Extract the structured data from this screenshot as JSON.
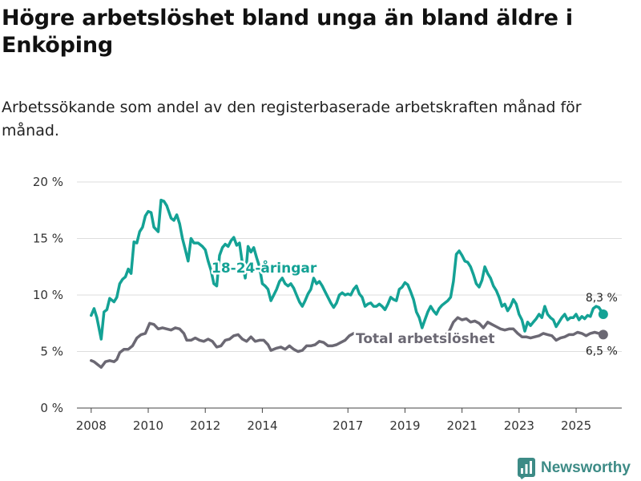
{
  "title": "Högre arbetslöshet bland unga än bland äldre i Enköping",
  "subtitle": "Arbetssökande som andel av den registerbaserade arbetskraften månad för månad.",
  "brand": {
    "name": "Newsworthy",
    "color": "#3d8b86"
  },
  "chart_data": {
    "type": "line",
    "ylim": [
      0,
      20
    ],
    "xlim": [
      2007.5,
      2026.6
    ],
    "y_ticks": [
      0,
      5,
      10,
      15,
      20
    ],
    "y_tick_labels": [
      "0 %",
      "5 %",
      "10 %",
      "15 %",
      "20 %"
    ],
    "x_ticks": [
      2008,
      2010,
      2012,
      2014,
      2017,
      2019,
      2021,
      2023,
      2025
    ],
    "x_tick_labels": [
      "2008",
      "2010",
      "2012",
      "2014",
      "2017",
      "2019",
      "2021",
      "2023",
      "2025"
    ],
    "grid": true,
    "series": [
      {
        "name": "18-24-åringar",
        "color": "#14a295",
        "end_label": "8,3 %",
        "points": [
          [
            2008.0,
            8.2
          ],
          [
            2008.1,
            8.8
          ],
          [
            2008.2,
            8.0
          ],
          [
            2008.35,
            6.1
          ],
          [
            2008.45,
            8.5
          ],
          [
            2008.55,
            8.7
          ],
          [
            2008.65,
            9.7
          ],
          [
            2008.8,
            9.4
          ],
          [
            2008.9,
            9.8
          ],
          [
            2009.0,
            11.0
          ],
          [
            2009.1,
            11.4
          ],
          [
            2009.2,
            11.6
          ],
          [
            2009.3,
            12.3
          ],
          [
            2009.4,
            11.9
          ],
          [
            2009.5,
            14.7
          ],
          [
            2009.6,
            14.6
          ],
          [
            2009.7,
            15.6
          ],
          [
            2009.8,
            16.0
          ],
          [
            2009.9,
            17.0
          ],
          [
            2010.0,
            17.4
          ],
          [
            2010.1,
            17.3
          ],
          [
            2010.2,
            16.0
          ],
          [
            2010.35,
            15.6
          ],
          [
            2010.45,
            18.4
          ],
          [
            2010.55,
            18.3
          ],
          [
            2010.65,
            17.9
          ],
          [
            2010.8,
            16.8
          ],
          [
            2010.9,
            16.6
          ],
          [
            2011.0,
            17.1
          ],
          [
            2011.1,
            16.3
          ],
          [
            2011.2,
            15.0
          ],
          [
            2011.3,
            14.0
          ],
          [
            2011.4,
            13.0
          ],
          [
            2011.5,
            15.0
          ],
          [
            2011.6,
            14.6
          ],
          [
            2011.75,
            14.6
          ],
          [
            2011.9,
            14.3
          ],
          [
            2012.0,
            14.0
          ],
          [
            2012.1,
            13.0
          ],
          [
            2012.2,
            12.2
          ],
          [
            2012.3,
            11.0
          ],
          [
            2012.4,
            10.8
          ],
          [
            2012.5,
            13.5
          ],
          [
            2012.6,
            14.2
          ],
          [
            2012.7,
            14.5
          ],
          [
            2012.8,
            14.3
          ],
          [
            2012.9,
            14.8
          ],
          [
            2013.0,
            15.1
          ],
          [
            2013.1,
            14.4
          ],
          [
            2013.2,
            14.6
          ],
          [
            2013.3,
            12.8
          ],
          [
            2013.4,
            11.5
          ],
          [
            2013.5,
            14.3
          ],
          [
            2013.6,
            13.8
          ],
          [
            2013.7,
            14.2
          ],
          [
            2013.8,
            13.3
          ],
          [
            2013.9,
            12.5
          ],
          [
            2014.0,
            11.0
          ],
          [
            2014.1,
            10.8
          ],
          [
            2014.2,
            10.5
          ],
          [
            2014.3,
            9.5
          ],
          [
            2014.4,
            10.0
          ],
          [
            2014.5,
            10.5
          ],
          [
            2014.6,
            11.2
          ],
          [
            2014.7,
            11.5
          ],
          [
            2014.8,
            11.0
          ],
          [
            2014.9,
            10.8
          ],
          [
            2015.0,
            11.0
          ],
          [
            2015.1,
            10.6
          ],
          [
            2015.2,
            10.0
          ],
          [
            2015.3,
            9.4
          ],
          [
            2015.4,
            9.0
          ],
          [
            2015.5,
            9.5
          ],
          [
            2015.6,
            10.1
          ],
          [
            2015.7,
            10.5
          ],
          [
            2015.8,
            11.5
          ],
          [
            2015.9,
            11.0
          ],
          [
            2016.0,
            11.2
          ],
          [
            2016.1,
            10.8
          ],
          [
            2016.2,
            10.3
          ],
          [
            2016.3,
            9.8
          ],
          [
            2016.4,
            9.3
          ],
          [
            2016.5,
            8.9
          ],
          [
            2016.6,
            9.3
          ],
          [
            2016.7,
            10.0
          ],
          [
            2016.8,
            10.2
          ],
          [
            2016.9,
            10.0
          ],
          [
            2017.0,
            10.1
          ],
          [
            2017.1,
            10.0
          ],
          [
            2017.2,
            10.5
          ],
          [
            2017.3,
            10.8
          ],
          [
            2017.4,
            10.1
          ],
          [
            2017.5,
            9.8
          ],
          [
            2017.6,
            9.0
          ],
          [
            2017.7,
            9.2
          ],
          [
            2017.8,
            9.3
          ],
          [
            2017.9,
            9.0
          ],
          [
            2018.0,
            9.0
          ],
          [
            2018.1,
            9.2
          ],
          [
            2018.2,
            9.0
          ],
          [
            2018.3,
            8.7
          ],
          [
            2018.4,
            9.2
          ],
          [
            2018.5,
            9.8
          ],
          [
            2018.6,
            9.6
          ],
          [
            2018.7,
            9.5
          ],
          [
            2018.8,
            10.5
          ],
          [
            2018.9,
            10.7
          ],
          [
            2019.0,
            11.1
          ],
          [
            2019.1,
            10.9
          ],
          [
            2019.2,
            10.3
          ],
          [
            2019.3,
            9.6
          ],
          [
            2019.4,
            8.5
          ],
          [
            2019.5,
            8.0
          ],
          [
            2019.6,
            7.1
          ],
          [
            2019.7,
            7.8
          ],
          [
            2019.8,
            8.5
          ],
          [
            2019.9,
            9.0
          ],
          [
            2020.0,
            8.6
          ],
          [
            2020.1,
            8.3
          ],
          [
            2020.2,
            8.8
          ],
          [
            2020.3,
            9.1
          ],
          [
            2020.4,
            9.3
          ],
          [
            2020.5,
            9.5
          ],
          [
            2020.6,
            9.8
          ],
          [
            2020.7,
            11.2
          ],
          [
            2020.8,
            13.6
          ],
          [
            2020.9,
            13.9
          ],
          [
            2021.0,
            13.5
          ],
          [
            2021.1,
            13.0
          ],
          [
            2021.2,
            12.9
          ],
          [
            2021.3,
            12.5
          ],
          [
            2021.4,
            11.8
          ],
          [
            2021.5,
            11.0
          ],
          [
            2021.6,
            10.7
          ],
          [
            2021.7,
            11.3
          ],
          [
            2021.8,
            12.5
          ],
          [
            2021.9,
            11.9
          ],
          [
            2022.0,
            11.5
          ],
          [
            2022.1,
            10.8
          ],
          [
            2022.2,
            10.4
          ],
          [
            2022.3,
            9.8
          ],
          [
            2022.4,
            9.0
          ],
          [
            2022.5,
            9.2
          ],
          [
            2022.6,
            8.6
          ],
          [
            2022.7,
            9.0
          ],
          [
            2022.8,
            9.6
          ],
          [
            2022.9,
            9.2
          ],
          [
            2023.0,
            8.3
          ],
          [
            2023.1,
            7.8
          ],
          [
            2023.2,
            6.8
          ],
          [
            2023.3,
            7.6
          ],
          [
            2023.4,
            7.3
          ],
          [
            2023.5,
            7.6
          ],
          [
            2023.6,
            7.9
          ],
          [
            2023.7,
            8.3
          ],
          [
            2023.8,
            8.0
          ],
          [
            2023.9,
            9.0
          ],
          [
            2024.0,
            8.3
          ],
          [
            2024.1,
            8.0
          ],
          [
            2024.2,
            7.8
          ],
          [
            2024.3,
            7.2
          ],
          [
            2024.4,
            7.6
          ],
          [
            2024.5,
            8.0
          ],
          [
            2024.6,
            8.3
          ],
          [
            2024.7,
            7.8
          ],
          [
            2024.8,
            8.0
          ],
          [
            2024.9,
            8.0
          ],
          [
            2025.0,
            8.3
          ],
          [
            2025.1,
            7.8
          ],
          [
            2025.2,
            8.1
          ],
          [
            2025.3,
            7.9
          ],
          [
            2025.4,
            8.2
          ],
          [
            2025.5,
            8.1
          ],
          [
            2025.6,
            8.8
          ],
          [
            2025.7,
            9.0
          ],
          [
            2025.8,
            8.9
          ],
          [
            2025.95,
            8.3
          ]
        ]
      },
      {
        "name": "Total arbetslöshet",
        "color": "#6b6873",
        "end_label": "6,5 %",
        "points": [
          [
            2008.0,
            4.2
          ],
          [
            2008.1,
            4.1
          ],
          [
            2008.2,
            3.9
          ],
          [
            2008.35,
            3.6
          ],
          [
            2008.5,
            4.1
          ],
          [
            2008.65,
            4.2
          ],
          [
            2008.8,
            4.1
          ],
          [
            2008.9,
            4.3
          ],
          [
            2009.0,
            4.9
          ],
          [
            2009.15,
            5.2
          ],
          [
            2009.3,
            5.2
          ],
          [
            2009.45,
            5.5
          ],
          [
            2009.6,
            6.2
          ],
          [
            2009.75,
            6.5
          ],
          [
            2009.9,
            6.6
          ],
          [
            2010.05,
            7.5
          ],
          [
            2010.2,
            7.4
          ],
          [
            2010.35,
            7.0
          ],
          [
            2010.5,
            7.1
          ],
          [
            2010.65,
            7.0
          ],
          [
            2010.8,
            6.9
          ],
          [
            2010.95,
            7.1
          ],
          [
            2011.1,
            7.0
          ],
          [
            2011.25,
            6.6
          ],
          [
            2011.35,
            6.0
          ],
          [
            2011.5,
            6.0
          ],
          [
            2011.65,
            6.2
          ],
          [
            2011.8,
            6.0
          ],
          [
            2011.95,
            5.9
          ],
          [
            2012.1,
            6.1
          ],
          [
            2012.25,
            5.9
          ],
          [
            2012.4,
            5.4
          ],
          [
            2012.55,
            5.5
          ],
          [
            2012.7,
            6.0
          ],
          [
            2012.85,
            6.1
          ],
          [
            2013.0,
            6.4
          ],
          [
            2013.15,
            6.5
          ],
          [
            2013.3,
            6.1
          ],
          [
            2013.45,
            5.9
          ],
          [
            2013.6,
            6.3
          ],
          [
            2013.75,
            5.9
          ],
          [
            2013.9,
            6.0
          ],
          [
            2014.05,
            6.0
          ],
          [
            2014.2,
            5.6
          ],
          [
            2014.3,
            5.1
          ],
          [
            2014.5,
            5.3
          ],
          [
            2014.65,
            5.4
          ],
          [
            2014.8,
            5.2
          ],
          [
            2014.95,
            5.5
          ],
          [
            2015.1,
            5.2
          ],
          [
            2015.25,
            5.0
          ],
          [
            2015.4,
            5.1
          ],
          [
            2015.55,
            5.5
          ],
          [
            2015.7,
            5.5
          ],
          [
            2015.85,
            5.6
          ],
          [
            2016.0,
            5.9
          ],
          [
            2016.15,
            5.8
          ],
          [
            2016.3,
            5.5
          ],
          [
            2016.45,
            5.5
          ],
          [
            2016.6,
            5.6
          ],
          [
            2016.75,
            5.8
          ],
          [
            2016.9,
            6.0
          ],
          [
            2017.05,
            6.4
          ],
          [
            2017.2,
            6.6
          ]
        ],
        "points2": [
          [
            2020.4,
            6.4
          ],
          [
            2020.55,
            6.8
          ],
          [
            2020.7,
            7.6
          ],
          [
            2020.85,
            8.0
          ],
          [
            2021.0,
            7.8
          ],
          [
            2021.15,
            7.9
          ],
          [
            2021.3,
            7.6
          ],
          [
            2021.45,
            7.7
          ],
          [
            2021.6,
            7.5
          ],
          [
            2021.75,
            7.1
          ],
          [
            2021.9,
            7.6
          ],
          [
            2022.05,
            7.4
          ],
          [
            2022.2,
            7.2
          ],
          [
            2022.35,
            7.0
          ],
          [
            2022.5,
            6.9
          ],
          [
            2022.65,
            7.0
          ],
          [
            2022.8,
            7.0
          ],
          [
            2022.95,
            6.6
          ],
          [
            2023.1,
            6.3
          ],
          [
            2023.25,
            6.3
          ],
          [
            2023.4,
            6.2
          ],
          [
            2023.55,
            6.3
          ],
          [
            2023.7,
            6.4
          ],
          [
            2023.85,
            6.6
          ],
          [
            2024.0,
            6.5
          ],
          [
            2024.15,
            6.4
          ],
          [
            2024.3,
            6.0
          ],
          [
            2024.45,
            6.2
          ],
          [
            2024.6,
            6.3
          ],
          [
            2024.75,
            6.5
          ],
          [
            2024.9,
            6.5
          ],
          [
            2025.05,
            6.7
          ],
          [
            2025.2,
            6.6
          ],
          [
            2025.35,
            6.4
          ],
          [
            2025.5,
            6.6
          ],
          [
            2025.65,
            6.7
          ],
          [
            2025.8,
            6.6
          ],
          [
            2025.95,
            6.5
          ]
        ]
      }
    ]
  }
}
